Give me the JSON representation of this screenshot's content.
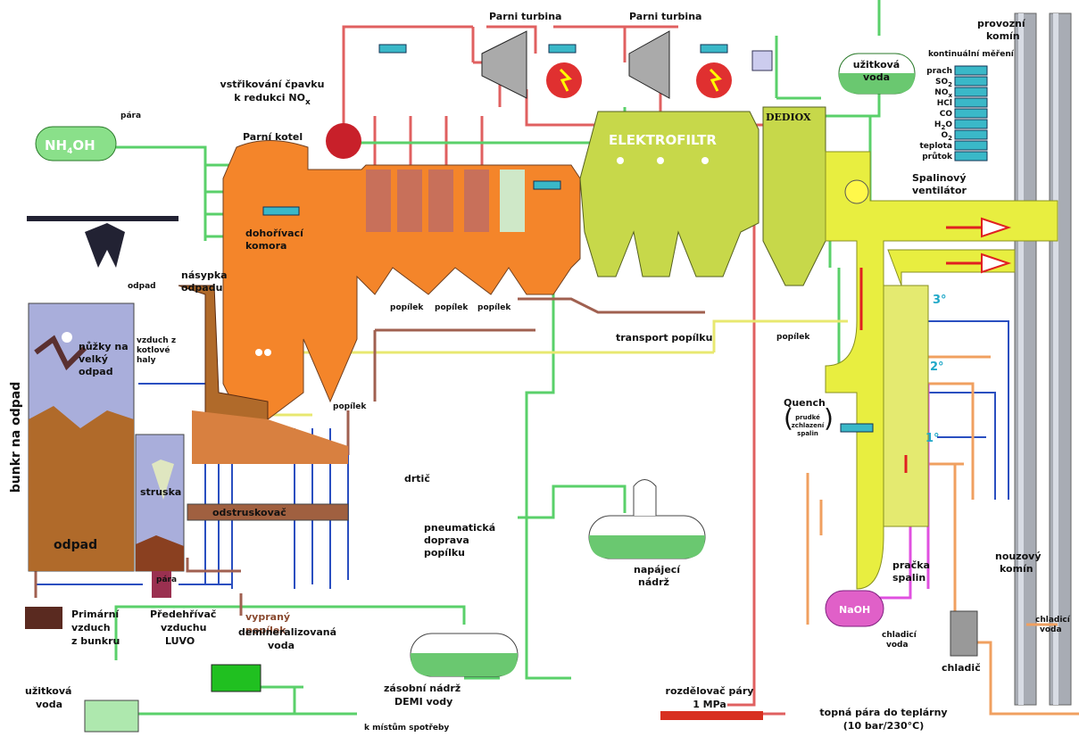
{
  "turbine_1": "Parni turbina",
  "turbine_2": "Parni turbina",
  "stack": [
    "provozní",
    "komín"
  ],
  "measurement_title": "kontinuální měření",
  "measurements": [
    [
      "prach"
    ],
    [
      "SO",
      "2"
    ],
    [
      "NO",
      "x"
    ],
    [
      "HCl"
    ],
    [
      "CO"
    ],
    [
      "H",
      "2",
      "O"
    ],
    [
      "O",
      "2"
    ],
    [
      "teplota"
    ],
    [
      "průtok"
    ]
  ],
  "service_water_top": [
    "užitková",
    "voda"
  ],
  "ammonia_injection": [
    "vstřikování čpavku",
    "k redukci NO",
    "x"
  ],
  "steam_top": "pára",
  "nh4oh": [
    "NH",
    "4",
    "OH"
  ],
  "boiler": "Parní kotel",
  "electrofilter": "ELEKTROFILTR",
  "dediox": "DEDIOX",
  "fan": [
    "Spalinový",
    "ventilátor"
  ],
  "afterburner": [
    "dohořívací",
    "komora"
  ],
  "waste_arrow": "odpad",
  "hopper": [
    "násypka",
    "odpadu"
  ],
  "bunker": "bunkr na odpad",
  "shears": [
    "nůžky na",
    "velký",
    "odpad"
  ],
  "hall_air": [
    "vzduch z",
    "kotlové",
    "haly"
  ],
  "fly_ash": [
    "popílek",
    "popílek",
    "popílek",
    "popílek",
    "popílek"
  ],
  "ash_transport": "transport popílku",
  "stages": [
    "3°",
    "2°",
    "1°"
  ],
  "quench": "Quench",
  "quench_note": [
    "prudké",
    "zchlazení",
    "spalin"
  ],
  "slag": "struska",
  "deslagger": "odstruskovač",
  "waste": "odpad",
  "crusher": "drtič",
  "pneumatic": [
    "pneumatická",
    "doprava",
    "popílku"
  ],
  "feed_tank": [
    "napájecí",
    "nádrž"
  ],
  "scrubber": [
    "pračka",
    "spalin"
  ],
  "emergency_stack": [
    "nouzový",
    "komín"
  ],
  "naoh": "NaOH",
  "cooling_water_1": [
    "chladicí",
    "voda"
  ],
  "cooling_water_2": [
    "chladicí",
    "voda"
  ],
  "cooler": "chladič",
  "primary_air": [
    "Primární",
    "vzduch",
    "z bunkru"
  ],
  "luvo": [
    "Předehřívač",
    "vzduchu",
    "LUVO"
  ],
  "steam_luvo": "pára",
  "washed_ash": [
    "vypraný",
    "popílek"
  ],
  "demi_water": [
    "demineralizovaná",
    "voda"
  ],
  "demi_tank": [
    "zásobní nádrž",
    "DEMI vody"
  ],
  "service_water_bottom": [
    "užitková",
    "voda"
  ],
  "consumers": "k místům spotřeby",
  "steam_header": [
    "rozdělovač páry",
    "1 MPa"
  ],
  "district_steam": [
    "topná pára do teplárny",
    "(10 bar/230°C)"
  ]
}
